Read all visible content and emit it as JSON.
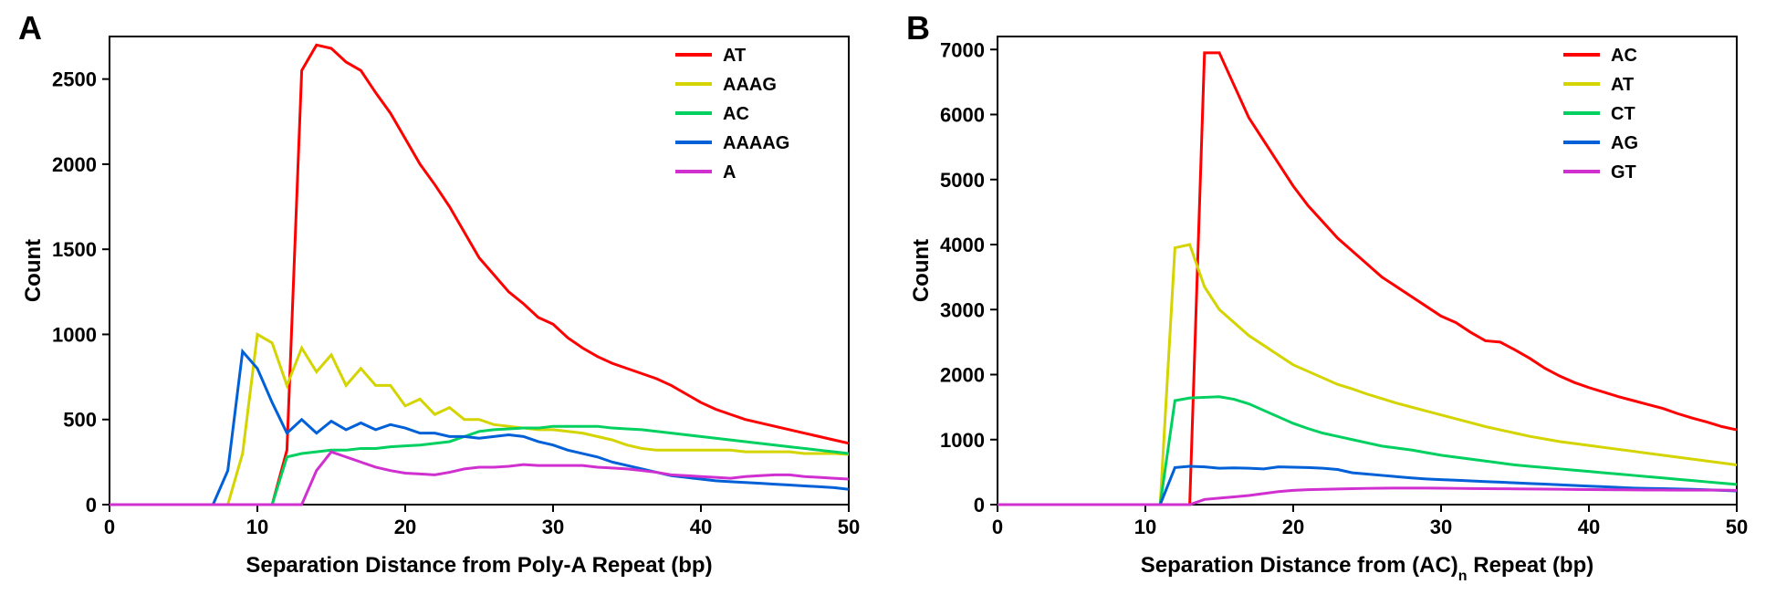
{
  "panelA": {
    "label": "A",
    "type": "line",
    "xlabel": "Separation Distance from Poly-A Repeat (bp)",
    "ylabel": "Count",
    "xlim": [
      0,
      50
    ],
    "ylim": [
      0,
      2750
    ],
    "xtick_step": 10,
    "ytick_step": 500,
    "xticks": [
      0,
      10,
      20,
      30,
      40,
      50
    ],
    "yticks": [
      0,
      500,
      1000,
      1500,
      2000,
      2500
    ],
    "background_color": "#ffffff",
    "axis_color": "#000000",
    "label_fontsize": 24,
    "tick_fontsize": 22,
    "legend_position": "top-right",
    "series": [
      {
        "name": "AT",
        "color": "#ff0000",
        "x": [
          0,
          1,
          2,
          3,
          4,
          5,
          6,
          7,
          8,
          9,
          10,
          11,
          12,
          13,
          14,
          15,
          16,
          17,
          18,
          19,
          20,
          21,
          22,
          23,
          24,
          25,
          26,
          27,
          28,
          29,
          30,
          31,
          32,
          33,
          34,
          35,
          36,
          37,
          38,
          39,
          40,
          41,
          42,
          43,
          44,
          45,
          46,
          47,
          48,
          49,
          50
        ],
        "y": [
          0,
          0,
          0,
          0,
          0,
          0,
          0,
          0,
          0,
          0,
          0,
          0,
          320,
          2550,
          2700,
          2680,
          2600,
          2550,
          2420,
          2300,
          2150,
          2000,
          1880,
          1750,
          1600,
          1450,
          1350,
          1250,
          1180,
          1100,
          1060,
          980,
          920,
          870,
          830,
          800,
          770,
          740,
          700,
          650,
          600,
          560,
          530,
          500,
          480,
          460,
          440,
          420,
          400,
          380,
          360
        ]
      },
      {
        "name": "AAAG",
        "color": "#d4d400",
        "x": [
          0,
          1,
          2,
          3,
          4,
          5,
          6,
          7,
          8,
          9,
          10,
          11,
          12,
          13,
          14,
          15,
          16,
          17,
          18,
          19,
          20,
          21,
          22,
          23,
          24,
          25,
          26,
          27,
          28,
          29,
          30,
          31,
          32,
          33,
          34,
          35,
          36,
          37,
          38,
          39,
          40,
          41,
          42,
          43,
          44,
          45,
          46,
          47,
          48,
          49,
          50
        ],
        "y": [
          0,
          0,
          0,
          0,
          0,
          0,
          0,
          0,
          0,
          300,
          1000,
          950,
          700,
          920,
          780,
          880,
          700,
          800,
          700,
          700,
          580,
          620,
          530,
          570,
          500,
          500,
          470,
          460,
          450,
          440,
          440,
          430,
          420,
          400,
          380,
          350,
          330,
          320,
          320,
          320,
          320,
          320,
          320,
          310,
          310,
          310,
          310,
          300,
          300,
          300,
          295
        ]
      },
      {
        "name": "AC",
        "color": "#00d060",
        "x": [
          0,
          1,
          2,
          3,
          4,
          5,
          6,
          7,
          8,
          9,
          10,
          11,
          12,
          13,
          14,
          15,
          16,
          17,
          18,
          19,
          20,
          21,
          22,
          23,
          24,
          25,
          26,
          27,
          28,
          29,
          30,
          31,
          32,
          33,
          34,
          35,
          36,
          37,
          38,
          39,
          40,
          41,
          42,
          43,
          44,
          45,
          46,
          47,
          48,
          49,
          50
        ],
        "y": [
          0,
          0,
          0,
          0,
          0,
          0,
          0,
          0,
          0,
          0,
          0,
          0,
          280,
          300,
          310,
          320,
          320,
          330,
          330,
          340,
          345,
          350,
          360,
          370,
          400,
          430,
          440,
          445,
          450,
          450,
          460,
          460,
          460,
          460,
          450,
          445,
          440,
          430,
          420,
          410,
          400,
          390,
          380,
          370,
          360,
          350,
          340,
          330,
          320,
          310,
          300
        ]
      },
      {
        "name": "AAAAG",
        "color": "#0060d8",
        "x": [
          0,
          1,
          2,
          3,
          4,
          5,
          6,
          7,
          8,
          9,
          10,
          11,
          12,
          13,
          14,
          15,
          16,
          17,
          18,
          19,
          20,
          21,
          22,
          23,
          24,
          25,
          26,
          27,
          28,
          29,
          30,
          31,
          32,
          33,
          34,
          35,
          36,
          37,
          38,
          39,
          40,
          41,
          42,
          43,
          44,
          45,
          46,
          47,
          48,
          49,
          50
        ],
        "y": [
          0,
          0,
          0,
          0,
          0,
          0,
          0,
          0,
          200,
          900,
          800,
          600,
          420,
          500,
          420,
          490,
          440,
          480,
          440,
          470,
          450,
          420,
          420,
          400,
          400,
          390,
          400,
          410,
          400,
          370,
          350,
          320,
          300,
          280,
          250,
          230,
          210,
          190,
          170,
          160,
          150,
          140,
          135,
          130,
          125,
          120,
          115,
          110,
          105,
          100,
          90
        ]
      },
      {
        "name": "A",
        "color": "#d030d0",
        "x": [
          0,
          1,
          2,
          3,
          4,
          5,
          6,
          7,
          8,
          9,
          10,
          11,
          12,
          13,
          14,
          15,
          16,
          17,
          18,
          19,
          20,
          21,
          22,
          23,
          24,
          25,
          26,
          27,
          28,
          29,
          30,
          31,
          32,
          33,
          34,
          35,
          36,
          37,
          38,
          39,
          40,
          41,
          42,
          43,
          44,
          45,
          46,
          47,
          48,
          49,
          50
        ],
        "y": [
          0,
          0,
          0,
          0,
          0,
          0,
          0,
          0,
          0,
          0,
          0,
          0,
          0,
          0,
          200,
          310,
          280,
          250,
          220,
          200,
          185,
          180,
          175,
          190,
          210,
          220,
          220,
          225,
          235,
          230,
          230,
          230,
          230,
          220,
          215,
          210,
          200,
          190,
          175,
          170,
          165,
          160,
          155,
          165,
          170,
          175,
          175,
          165,
          160,
          155,
          150
        ]
      }
    ]
  },
  "panelB": {
    "label": "B",
    "type": "line",
    "xlabel_main": "Separation Distance from (AC)",
    "xlabel_sub": "n",
    "xlabel_tail": " Repeat (bp)",
    "ylabel": "Count",
    "xlim": [
      0,
      50
    ],
    "ylim": [
      0,
      7200
    ],
    "xtick_step": 10,
    "ytick_step": 1000,
    "xticks": [
      0,
      10,
      20,
      30,
      40,
      50
    ],
    "yticks": [
      0,
      1000,
      2000,
      3000,
      4000,
      5000,
      6000,
      7000
    ],
    "background_color": "#ffffff",
    "axis_color": "#000000",
    "label_fontsize": 24,
    "tick_fontsize": 22,
    "legend_position": "top-right",
    "series": [
      {
        "name": "AC",
        "color": "#ff0000",
        "x": [
          0,
          1,
          2,
          3,
          4,
          5,
          6,
          7,
          8,
          9,
          10,
          11,
          12,
          13,
          14,
          15,
          16,
          17,
          18,
          19,
          20,
          21,
          22,
          23,
          24,
          25,
          26,
          27,
          28,
          29,
          30,
          31,
          32,
          33,
          34,
          35,
          36,
          37,
          38,
          39,
          40,
          41,
          42,
          43,
          44,
          45,
          46,
          47,
          48,
          49,
          50
        ],
        "y": [
          0,
          0,
          0,
          0,
          0,
          0,
          0,
          0,
          0,
          0,
          0,
          0,
          0,
          0,
          6950,
          6950,
          6450,
          5950,
          5600,
          5250,
          4900,
          4600,
          4350,
          4100,
          3900,
          3700,
          3500,
          3350,
          3200,
          3050,
          2900,
          2800,
          2650,
          2520,
          2500,
          2380,
          2250,
          2100,
          1980,
          1880,
          1800,
          1730,
          1660,
          1600,
          1540,
          1480,
          1400,
          1330,
          1270,
          1200,
          1150
        ]
      },
      {
        "name": "AT",
        "color": "#d4d400",
        "x": [
          0,
          1,
          2,
          3,
          4,
          5,
          6,
          7,
          8,
          9,
          10,
          11,
          12,
          13,
          14,
          15,
          16,
          17,
          18,
          19,
          20,
          21,
          22,
          23,
          24,
          25,
          26,
          27,
          28,
          29,
          30,
          31,
          32,
          33,
          34,
          35,
          36,
          37,
          38,
          39,
          40,
          41,
          42,
          43,
          44,
          45,
          46,
          47,
          48,
          49,
          50
        ],
        "y": [
          0,
          0,
          0,
          0,
          0,
          0,
          0,
          0,
          0,
          0,
          0,
          0,
          3950,
          4000,
          3350,
          3000,
          2800,
          2600,
          2450,
          2300,
          2150,
          2050,
          1950,
          1850,
          1780,
          1700,
          1630,
          1560,
          1500,
          1440,
          1380,
          1320,
          1260,
          1200,
          1150,
          1100,
          1050,
          1010,
          970,
          940,
          910,
          880,
          850,
          820,
          790,
          760,
          730,
          700,
          670,
          640,
          610
        ]
      },
      {
        "name": "CT",
        "color": "#00d060",
        "x": [
          0,
          1,
          2,
          3,
          4,
          5,
          6,
          7,
          8,
          9,
          10,
          11,
          12,
          13,
          14,
          15,
          16,
          17,
          18,
          19,
          20,
          21,
          22,
          23,
          24,
          25,
          26,
          27,
          28,
          29,
          30,
          31,
          32,
          33,
          34,
          35,
          36,
          37,
          38,
          39,
          40,
          41,
          42,
          43,
          44,
          45,
          46,
          47,
          48,
          49,
          50
        ],
        "y": [
          0,
          0,
          0,
          0,
          0,
          0,
          0,
          0,
          0,
          0,
          0,
          0,
          1600,
          1640,
          1650,
          1660,
          1620,
          1550,
          1450,
          1350,
          1250,
          1170,
          1100,
          1050,
          1000,
          950,
          900,
          870,
          840,
          800,
          760,
          730,
          700,
          670,
          640,
          610,
          590,
          570,
          550,
          530,
          510,
          490,
          470,
          450,
          430,
          410,
          390,
          370,
          350,
          330,
          310
        ]
      },
      {
        "name": "AG",
        "color": "#0060d8",
        "x": [
          0,
          1,
          2,
          3,
          4,
          5,
          6,
          7,
          8,
          9,
          10,
          11,
          12,
          13,
          14,
          15,
          16,
          17,
          18,
          19,
          20,
          21,
          22,
          23,
          24,
          25,
          26,
          27,
          28,
          29,
          30,
          31,
          32,
          33,
          34,
          35,
          36,
          37,
          38,
          39,
          40,
          41,
          42,
          43,
          44,
          45,
          46,
          47,
          48,
          49,
          50
        ],
        "y": [
          0,
          0,
          0,
          0,
          0,
          0,
          0,
          0,
          0,
          0,
          0,
          0,
          570,
          590,
          580,
          560,
          565,
          560,
          550,
          580,
          575,
          570,
          560,
          540,
          490,
          470,
          450,
          430,
          410,
          395,
          385,
          375,
          365,
          355,
          345,
          335,
          325,
          315,
          305,
          295,
          285,
          275,
          265,
          255,
          250,
          245,
          240,
          235,
          228,
          220,
          210
        ]
      },
      {
        "name": "GT",
        "color": "#d030d0",
        "x": [
          0,
          1,
          2,
          3,
          4,
          5,
          6,
          7,
          8,
          9,
          10,
          11,
          12,
          13,
          14,
          15,
          16,
          17,
          18,
          19,
          20,
          21,
          22,
          23,
          24,
          25,
          26,
          27,
          28,
          29,
          30,
          31,
          32,
          33,
          34,
          35,
          36,
          37,
          38,
          39,
          40,
          41,
          42,
          43,
          44,
          45,
          46,
          47,
          48,
          49,
          50
        ],
        "y": [
          0,
          0,
          0,
          0,
          0,
          0,
          0,
          0,
          0,
          0,
          0,
          0,
          0,
          0,
          80,
          100,
          120,
          140,
          170,
          200,
          220,
          230,
          235,
          240,
          245,
          250,
          252,
          255,
          255,
          255,
          252,
          250,
          248,
          246,
          244,
          242,
          240,
          238,
          236,
          234,
          232,
          230,
          228,
          226,
          225,
          224,
          223,
          223,
          222,
          222,
          220
        ]
      }
    ]
  }
}
